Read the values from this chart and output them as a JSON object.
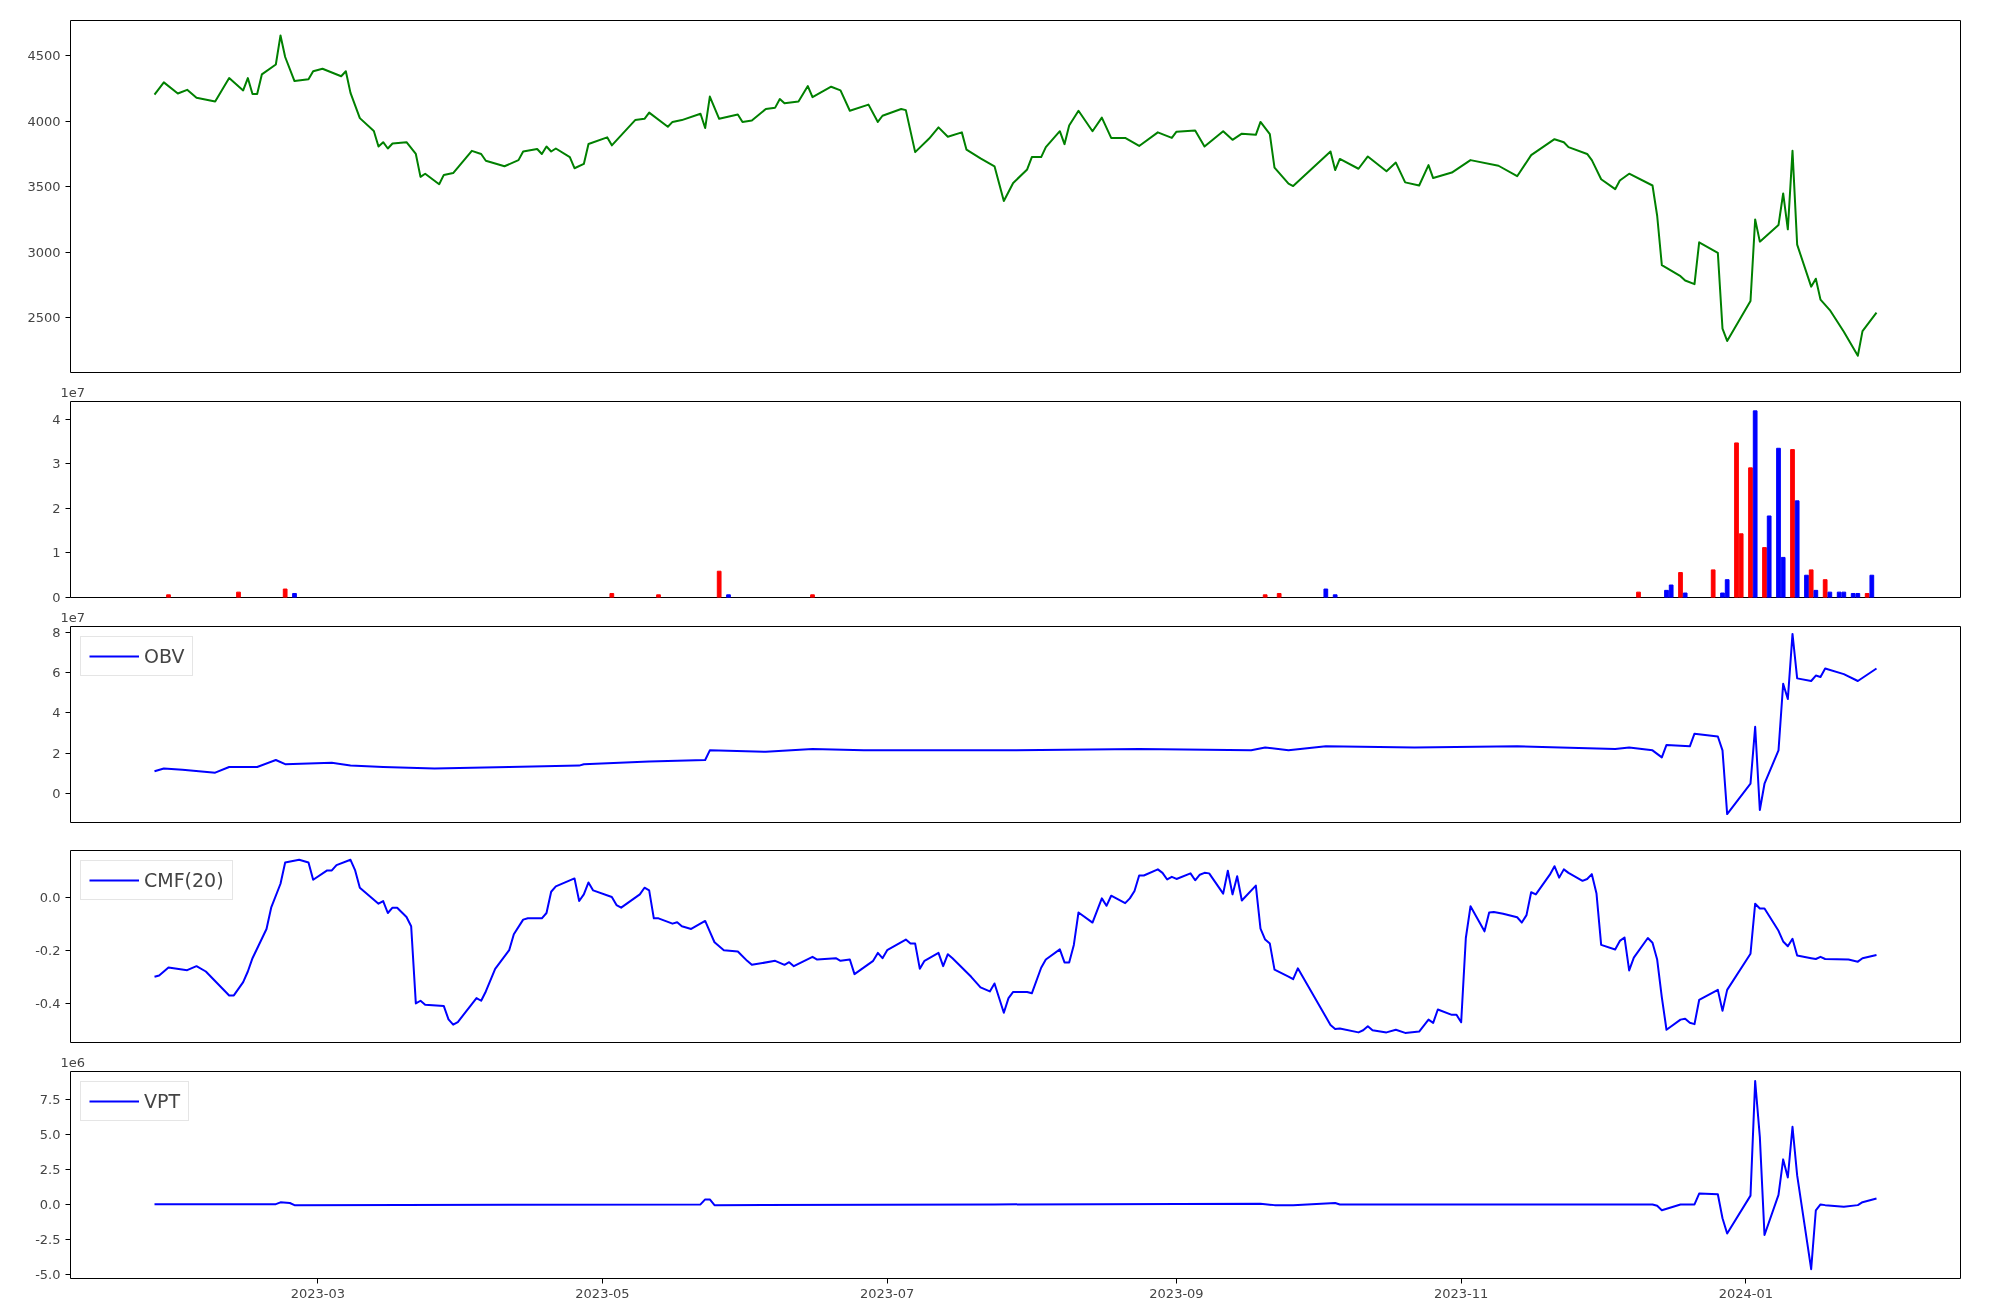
{
  "chart_data": [
    {
      "type": "line",
      "xlim": [
        "2023-01-07",
        "2024-02-16"
      ],
      "ylim": [
        2080,
        4770
      ],
      "yticks": [
        2500,
        3000,
        3500,
        4000,
        4500
      ],
      "grid": false,
      "tick_labels": "y",
      "x": [
        "2023-01-25",
        "2023-01-27",
        "2023-01-30",
        "2023-02-01",
        "2023-02-03",
        "2023-02-07",
        "2023-02-10",
        "2023-02-13",
        "2023-02-14",
        "2023-02-15",
        "2023-02-16",
        "2023-02-17",
        "2023-02-20",
        "2023-02-21",
        "2023-02-22",
        "2023-02-24",
        "2023-02-27",
        "2023-02-28",
        "2023-03-02",
        "2023-03-06",
        "2023-03-07",
        "2023-03-08",
        "2023-03-10",
        "2023-03-13",
        "2023-03-14",
        "2023-03-15",
        "2023-03-16",
        "2023-03-17",
        "2023-03-20",
        "2023-03-22",
        "2023-03-23",
        "2023-03-24",
        "2023-03-27",
        "2023-03-28",
        "2023-03-30",
        "2023-04-03",
        "2023-04-05",
        "2023-04-06",
        "2023-04-10",
        "2023-04-13",
        "2023-04-14",
        "2023-04-17",
        "2023-04-18",
        "2023-04-19",
        "2023-04-20",
        "2023-04-21",
        "2023-04-24",
        "2023-04-25",
        "2023-04-27",
        "2023-04-28",
        "2023-05-02",
        "2023-05-03",
        "2023-05-08",
        "2023-05-10",
        "2023-05-11",
        "2023-05-15",
        "2023-05-16",
        "2023-05-18",
        "2023-05-22",
        "2023-05-23",
        "2023-05-24",
        "2023-05-26",
        "2023-05-30",
        "2023-05-31",
        "2023-06-02",
        "2023-06-05",
        "2023-06-07",
        "2023-06-08",
        "2023-06-09",
        "2023-06-12",
        "2023-06-14",
        "2023-06-15",
        "2023-06-19",
        "2023-06-21",
        "2023-06-23",
        "2023-06-27",
        "2023-06-29",
        "2023-06-30",
        "2023-07-04",
        "2023-07-05",
        "2023-07-07",
        "2023-07-10",
        "2023-07-12",
        "2023-07-14",
        "2023-07-17",
        "2023-07-18",
        "2023-07-21",
        "2023-07-24",
        "2023-07-26",
        "2023-07-28",
        "2023-07-31",
        "2023-08-01",
        "2023-08-03",
        "2023-08-04",
        "2023-08-07",
        "2023-08-08",
        "2023-08-09",
        "2023-08-11",
        "2023-08-14",
        "2023-08-16",
        "2023-08-18",
        "2023-08-21",
        "2023-08-24",
        "2023-08-28",
        "2023-08-31",
        "2023-09-01",
        "2023-09-05",
        "2023-09-07",
        "2023-09-11",
        "2023-09-13",
        "2023-09-15",
        "2023-09-18",
        "2023-09-19",
        "2023-09-21",
        "2023-09-22",
        "2023-09-25",
        "2023-09-26",
        "2023-10-04",
        "2023-10-05",
        "2023-10-06",
        "2023-10-10",
        "2023-10-12",
        "2023-10-16",
        "2023-10-18",
        "2023-10-20",
        "2023-10-23",
        "2023-10-25",
        "2023-10-26",
        "2023-10-30",
        "2023-11-03",
        "2023-11-09",
        "2023-11-13",
        "2023-11-16",
        "2023-11-21",
        "2023-11-23",
        "2023-11-24",
        "2023-11-28",
        "2023-11-29",
        "2023-12-01",
        "2023-12-04",
        "2023-12-05",
        "2023-12-07",
        "2023-12-12",
        "2023-12-13",
        "2023-12-14",
        "2023-12-18",
        "2023-12-19",
        "2023-12-21",
        "2023-12-22",
        "2023-12-26",
        "2023-12-27",
        "2023-12-28",
        "2024-01-02",
        "2024-01-03",
        "2024-01-04",
        "2024-01-08",
        "2024-01-09",
        "2024-01-10",
        "2024-01-11",
        "2024-01-12",
        "2024-01-15",
        "2024-01-16",
        "2024-01-17",
        "2024-01-19",
        "2024-01-22",
        "2024-01-25",
        "2024-01-26",
        "2024-01-29"
      ],
      "series": [
        {
          "color": "#008000",
          "values": [
            4203,
            4297,
            4212,
            4240,
            4179,
            4151,
            4330,
            4236,
            4330,
            4208,
            4208,
            4358,
            4434,
            4656,
            4491,
            4307,
            4321,
            4382,
            4401,
            4344,
            4382,
            4217,
            4024,
            3925,
            3807,
            3840,
            3792,
            3830,
            3840,
            3750,
            3575,
            3599,
            3519,
            3590,
            3604,
            3774,
            3750,
            3698,
            3656,
            3703,
            3769,
            3788,
            3750,
            3807,
            3769,
            3792,
            3726,
            3641,
            3674,
            3826,
            3877,
            3816,
            4009,
            4019,
            4066,
            3958,
            3995,
            4009,
            4057,
            3948,
            4189,
            4019,
            4052,
            3995,
            4005,
            4094,
            4104,
            4170,
            4137,
            4151,
            4269,
            4184,
            4264,
            4236,
            4080,
            4127,
            3995,
            4042,
            4094,
            4085,
            3764,
            3868,
            3953,
            3882,
            3915,
            3783,
            3717,
            3656,
            3391,
            3528,
            3632,
            3726,
            3726,
            3802,
            3924,
            3825,
            3967,
            4080,
            3924,
            4028,
            3873,
            3873,
            3811,
            3915,
            3873,
            3920,
            3929,
            3807,
            3924,
            3858,
            3905,
            3896,
            3995,
            3901,
            3646,
            3524,
            3505,
            3769,
            3627,
            3712,
            3637,
            3731,
            3618,
            3684,
            3533,
            3509,
            3665,
            3566,
            3608,
            3703,
            3660,
            3580,
            3741,
            3863,
            3840,
            3802,
            3750,
            3703,
            3557,
            3481,
            3547,
            3599,
            3509,
            3278,
            2901,
            2816,
            2783,
            2755,
            3075,
            2995,
            2415,
            2321,
            2627,
            3250,
            3080,
            3207,
            3448,
            3174,
            3774,
            3057,
            2736,
            2797,
            2637,
            2557,
            2391,
            2208,
            2396,
            2538
          ]
        }
      ]
    },
    {
      "type": "bar",
      "ylabel": "1e7",
      "xlim": [
        "2023-01-07",
        "2024-02-16"
      ],
      "ylim": [
        0,
        4.4
      ],
      "yticks": [
        0,
        1,
        2,
        3,
        4
      ],
      "grid": false,
      "tick_labels": "y",
      "x": [
        "2023-01-28",
        "2023-02-12",
        "2023-02-22",
        "2023-02-24",
        "2023-05-03",
        "2023-05-13",
        "2023-05-26",
        "2023-05-28",
        "2023-06-15",
        "2023-09-20",
        "2023-09-23",
        "2023-10-03",
        "2023-10-05",
        "2023-12-09",
        "2023-12-15",
        "2023-12-16",
        "2023-12-18",
        "2023-12-19",
        "2023-12-25",
        "2023-12-27",
        "2023-12-28",
        "2023-12-30",
        "2023-12-31",
        "2024-01-02",
        "2024-01-03",
        "2024-01-05",
        "2024-01-06",
        "2024-01-08",
        "2024-01-09",
        "2024-01-11",
        "2024-01-12",
        "2024-01-14",
        "2024-01-15",
        "2024-01-16",
        "2024-01-18",
        "2024-01-19",
        "2024-01-21",
        "2024-01-22",
        "2024-01-24",
        "2024-01-25",
        "2024-01-27",
        "2024-01-28"
      ],
      "values": [
        0.06,
        0.12,
        0.19,
        0.09,
        0.09,
        0.06,
        0.59,
        0.06,
        0.06,
        0.06,
        0.09,
        0.19,
        0.06,
        0.12,
        0.16,
        0.28,
        0.56,
        0.1,
        0.62,
        0.1,
        0.4,
        3.47,
        1.43,
        2.91,
        4.19,
        1.12,
        1.83,
        3.35,
        0.9,
        3.32,
        2.17,
        0.5,
        0.62,
        0.16,
        0.4,
        0.12,
        0.12,
        0.12,
        0.09,
        0.09,
        0.09,
        0.5
      ],
      "colors": [
        "#ff0000",
        "#ff0000",
        "#ff0000",
        "#0000ff",
        "#ff0000",
        "#ff0000",
        "#ff0000",
        "#0000ff",
        "#ff0000",
        "#ff0000",
        "#ff0000",
        "#0000ff",
        "#0000ff",
        "#ff0000",
        "#0000ff",
        "#0000ff",
        "#ff0000",
        "#0000ff",
        "#ff0000",
        "#0000ff",
        "#0000ff",
        "#ff0000",
        "#ff0000",
        "#ff0000",
        "#0000ff",
        "#ff0000",
        "#0000ff",
        "#0000ff",
        "#0000ff",
        "#ff0000",
        "#0000ff",
        "#0000ff",
        "#ff0000",
        "#0000ff",
        "#ff0000",
        "#0000ff",
        "#0000ff",
        "#0000ff",
        "#0000ff",
        "#0000ff",
        "#ff0000",
        "#0000ff"
      ]
    },
    {
      "type": "line",
      "ylabel": "1e7",
      "xlim": [
        "2023-01-07",
        "2024-02-16"
      ],
      "ylim": [
        -1.45,
        8.3
      ],
      "yticks": [
        0,
        2,
        4,
        6,
        8
      ],
      "grid": false,
      "tick_labels": "y",
      "legend": "top left",
      "x": [
        "2023-01-25",
        "2023-01-27",
        "2023-01-31",
        "2023-02-07",
        "2023-02-10",
        "2023-02-16",
        "2023-02-20",
        "2023-02-22",
        "2023-03-04",
        "2023-03-08",
        "2023-03-15",
        "2023-03-26",
        "2023-04-11",
        "2023-04-26",
        "2023-04-27",
        "2023-05-11",
        "2023-05-23",
        "2023-05-24",
        "2023-06-05",
        "2023-06-15",
        "2023-06-26",
        "2023-07-28",
        "2023-08-24",
        "2023-09-17",
        "2023-09-20",
        "2023-09-25",
        "2023-10-03",
        "2023-10-22",
        "2023-11-13",
        "2023-12-04",
        "2023-12-07",
        "2023-12-12",
        "2023-12-14",
        "2023-12-15",
        "2023-12-20",
        "2023-12-21",
        "2023-12-26",
        "2023-12-27",
        "2023-12-28",
        "2024-01-02",
        "2024-01-03",
        "2024-01-04",
        "2024-01-05",
        "2024-01-08",
        "2024-01-09",
        "2024-01-10",
        "2024-01-11",
        "2024-01-12",
        "2024-01-15",
        "2024-01-16",
        "2024-01-17",
        "2024-01-18",
        "2024-01-22",
        "2024-01-25",
        "2024-01-29"
      ],
      "series": [
        {
          "name": "OBV",
          "color": "#0000ff",
          "values": [
            1.1,
            1.24,
            1.17,
            1.03,
            1.31,
            1.31,
            1.66,
            1.45,
            1.52,
            1.38,
            1.31,
            1.24,
            1.31,
            1.38,
            1.45,
            1.59,
            1.66,
            2.14,
            2.07,
            2.21,
            2.14,
            2.14,
            2.21,
            2.14,
            2.28,
            2.14,
            2.34,
            2.28,
            2.34,
            2.21,
            2.28,
            2.14,
            1.79,
            2.41,
            2.34,
            2.97,
            2.83,
            2.14,
            -1.03,
            0.48,
            3.31,
            -0.83,
            0.48,
            2.14,
            5.45,
            4.69,
            7.93,
            5.72,
            5.59,
            5.86,
            5.79,
            6.21,
            5.93,
            5.59,
            6.21
          ]
        }
      ]
    },
    {
      "type": "line",
      "xlim": [
        "2023-01-07",
        "2024-02-16"
      ],
      "ylim": [
        -0.547,
        0.175
      ],
      "yticks": [
        {
          "value": -0.4,
          "label": "-0.4"
        },
        {
          "value": -0.2,
          "label": "-0.2"
        },
        {
          "value": 0,
          "label": "0.0"
        }
      ],
      "grid": false,
      "tick_labels": "y",
      "legend": "top left",
      "x": [
        "2023-01-25",
        "2023-01-26",
        "2023-01-28",
        "2023-02-01",
        "2023-02-03",
        "2023-02-05",
        "2023-02-10",
        "2023-02-11",
        "2023-02-13",
        "2023-02-14",
        "2023-02-15",
        "2023-02-18",
        "2023-02-19",
        "2023-02-21",
        "2023-02-22",
        "2023-02-25",
        "2023-02-27",
        "2023-02-28",
        "2023-03-03",
        "2023-03-04",
        "2023-03-05",
        "2023-03-08",
        "2023-03-09",
        "2023-03-10",
        "2023-03-11",
        "2023-03-14",
        "2023-03-15",
        "2023-03-16",
        "2023-03-17",
        "2023-03-18",
        "2023-03-20",
        "2023-03-21",
        "2023-03-22",
        "2023-03-23",
        "2023-03-24",
        "2023-03-28",
        "2023-03-29",
        "2023-03-30",
        "2023-03-31",
        "2023-04-04",
        "2023-04-05",
        "2023-04-06",
        "2023-04-08",
        "2023-04-11",
        "2023-04-12",
        "2023-04-14",
        "2023-04-15",
        "2023-04-18",
        "2023-04-19",
        "2023-04-20",
        "2023-04-21",
        "2023-04-25",
        "2023-04-26",
        "2023-04-27",
        "2023-04-28",
        "2023-04-29",
        "2023-05-03",
        "2023-05-04",
        "2023-05-05",
        "2023-05-09",
        "2023-05-10",
        "2023-05-11",
        "2023-05-12",
        "2023-05-13",
        "2023-05-16",
        "2023-05-17",
        "2023-05-18",
        "2023-05-20",
        "2023-05-23",
        "2023-05-24",
        "2023-05-25",
        "2023-05-27",
        "2023-05-30",
        "2023-06-01",
        "2023-06-02",
        "2023-06-07",
        "2023-06-09",
        "2023-06-10",
        "2023-06-11",
        "2023-06-15",
        "2023-06-16",
        "2023-06-20",
        "2023-06-21",
        "2023-06-23",
        "2023-06-24",
        "2023-06-28",
        "2023-06-29",
        "2023-06-30",
        "2023-07-01",
        "2023-07-05",
        "2023-07-06",
        "2023-07-07",
        "2023-07-08",
        "2023-07-09",
        "2023-07-12",
        "2023-07-13",
        "2023-07-14",
        "2023-07-15",
        "2023-07-19",
        "2023-07-21",
        "2023-07-23",
        "2023-07-24",
        "2023-07-26",
        "2023-07-27",
        "2023-07-28",
        "2023-07-31",
        "2023-08-01",
        "2023-08-03",
        "2023-08-04",
        "2023-08-07",
        "2023-08-08",
        "2023-08-09",
        "2023-08-10",
        "2023-08-11",
        "2023-08-14",
        "2023-08-16",
        "2023-08-17",
        "2023-08-18",
        "2023-08-21",
        "2023-08-22",
        "2023-08-23",
        "2023-08-24",
        "2023-08-25",
        "2023-08-28",
        "2023-08-29",
        "2023-08-30",
        "2023-08-31",
        "2023-09-01",
        "2023-09-04",
        "2023-09-05",
        "2023-09-06",
        "2023-09-07",
        "2023-09-08",
        "2023-09-11",
        "2023-09-12",
        "2023-09-13",
        "2023-09-14",
        "2023-09-15",
        "2023-09-18",
        "2023-09-19",
        "2023-09-20",
        "2023-09-21",
        "2023-09-22",
        "2023-09-25",
        "2023-09-26",
        "2023-09-27",
        "2023-10-04",
        "2023-10-05",
        "2023-10-06",
        "2023-10-10",
        "2023-10-11",
        "2023-10-12",
        "2023-10-13",
        "2023-10-16",
        "2023-10-18",
        "2023-10-20",
        "2023-10-23",
        "2023-10-25",
        "2023-10-26",
        "2023-10-27",
        "2023-10-30",
        "2023-10-31",
        "2023-11-01",
        "2023-11-02",
        "2023-11-03",
        "2023-11-06",
        "2023-11-07",
        "2023-11-08",
        "2023-11-10",
        "2023-11-13",
        "2023-11-14",
        "2023-11-15",
        "2023-11-16",
        "2023-11-17",
        "2023-11-20",
        "2023-11-21",
        "2023-11-22",
        "2023-11-23",
        "2023-11-24",
        "2023-11-27",
        "2023-11-28",
        "2023-11-29",
        "2023-11-30",
        "2023-12-01",
        "2023-12-04",
        "2023-12-05",
        "2023-12-06",
        "2023-12-07",
        "2023-12-08",
        "2023-12-11",
        "2023-12-12",
        "2023-12-13",
        "2023-12-14",
        "2023-12-15",
        "2023-12-18",
        "2023-12-19",
        "2023-12-20",
        "2023-12-21",
        "2023-12-22",
        "2023-12-26",
        "2023-12-27",
        "2023-12-28",
        "2024-01-02",
        "2024-01-03",
        "2024-01-04",
        "2024-01-05",
        "2024-01-08",
        "2024-01-09",
        "2024-01-10",
        "2024-01-11",
        "2024-01-12",
        "2024-01-15",
        "2024-01-16",
        "2024-01-17",
        "2024-01-18",
        "2024-01-23",
        "2024-01-25",
        "2024-01-26",
        "2024-01-29"
      ],
      "series": [
        {
          "name": "CMF(20)",
          "color": "#0000ff",
          "values": [
            -0.3,
            -0.295,
            -0.265,
            -0.275,
            -0.26,
            -0.28,
            -0.37,
            -0.37,
            -0.32,
            -0.28,
            -0.23,
            -0.12,
            -0.04,
            0.05,
            0.13,
            0.14,
            0.13,
            0.065,
            0.1,
            0.1,
            0.12,
            0.14,
            0.1,
            0.035,
            0.02,
            -0.025,
            -0.015,
            -0.06,
            -0.04,
            -0.04,
            -0.075,
            -0.11,
            -0.4,
            -0.39,
            -0.405,
            -0.41,
            -0.46,
            -0.48,
            -0.47,
            -0.38,
            -0.39,
            -0.355,
            -0.27,
            -0.2,
            -0.14,
            -0.085,
            -0.08,
            -0.08,
            -0.06,
            0.02,
            0.04,
            0.07,
            -0.015,
            0.01,
            0.055,
            0.025,
            0.0,
            -0.03,
            -0.04,
            0.01,
            0.035,
            0.025,
            -0.08,
            -0.08,
            -0.1,
            -0.095,
            -0.11,
            -0.12,
            -0.09,
            -0.13,
            -0.17,
            -0.2,
            -0.205,
            -0.24,
            -0.255,
            -0.24,
            -0.255,
            -0.245,
            -0.26,
            -0.225,
            -0.235,
            -0.23,
            -0.24,
            -0.235,
            -0.29,
            -0.24,
            -0.21,
            -0.23,
            -0.2,
            -0.16,
            -0.175,
            -0.175,
            -0.27,
            -0.24,
            -0.21,
            -0.26,
            -0.215,
            -0.23,
            -0.3,
            -0.34,
            -0.355,
            -0.325,
            -0.435,
            -0.38,
            -0.357,
            -0.357,
            -0.362,
            -0.266,
            -0.235,
            -0.197,
            -0.246,
            -0.246,
            -0.18,
            -0.058,
            -0.096,
            -0.005,
            -0.033,
            0.005,
            -0.023,
            -0.005,
            0.023,
            0.081,
            0.081,
            0.104,
            0.091,
            0.066,
            0.076,
            0.068,
            0.089,
            0.063,
            0.084,
            0.091,
            0.089,
            0.013,
            0.099,
            0.01,
            0.078,
            -0.013,
            0.043,
            -0.119,
            -0.16,
            -0.175,
            -0.273,
            -0.299,
            -0.309,
            -0.268,
            -0.481,
            -0.496,
            -0.494,
            -0.509,
            -0.501,
            -0.486,
            -0.501,
            -0.509,
            -0.499,
            -0.511,
            -0.506,
            -0.461,
            -0.473,
            -0.423,
            -0.443,
            -0.443,
            -0.471,
            -0.154,
            -0.035,
            -0.129,
            -0.058,
            -0.056,
            -0.063,
            -0.076,
            -0.096,
            -0.068,
            0.018,
            0.01,
            0.084,
            0.116,
            0.073,
            0.104,
            0.091,
            0.061,
            0.068,
            0.086,
            0.013,
            -0.18,
            -0.197,
            -0.165,
            -0.152,
            -0.276,
            -0.228,
            -0.154,
            -0.172,
            -0.235,
            -0.377,
            -0.499,
            -0.461,
            -0.458,
            -0.473,
            -0.478,
            -0.387,
            -0.349,
            -0.428,
            -0.349,
            -0.213,
            -0.025,
            -0.043,
            -0.043,
            -0.127,
            -0.167,
            -0.185,
            -0.157,
            -0.22,
            -0.23,
            -0.233,
            -0.225,
            -0.233,
            -0.235,
            -0.243,
            -0.23,
            -0.218
          ]
        }
      ]
    },
    {
      "type": "line",
      "ylabel": "1e6",
      "xlim": [
        "2023-01-07",
        "2024-02-16"
      ],
      "xticks": [
        {
          "value": "2023-03-01",
          "label": "2023-03"
        },
        {
          "value": "2023-05-01",
          "label": "2023-05"
        },
        {
          "value": "2023-07-01",
          "label": "2023-07"
        },
        {
          "value": "2023-09-01",
          "label": "2023-09"
        },
        {
          "value": "2023-11-01",
          "label": "2023-11"
        },
        {
          "value": "2024-01-01",
          "label": "2024-01"
        }
      ],
      "ylim": [
        -5.31,
        9.53
      ],
      "yticks": [
        {
          "value": -5,
          "label": "-5.0"
        },
        {
          "value": -2.5,
          "label": "-2.5"
        },
        {
          "value": 0,
          "label": "0.0"
        },
        {
          "value": 2.5,
          "label": "2.5"
        },
        {
          "value": 5,
          "label": "5.0"
        },
        {
          "value": 7.5,
          "label": "7.5"
        }
      ],
      "grid": false,
      "legend": "top left",
      "x": [
        "2023-01-25",
        "2023-02-20",
        "2023-02-21",
        "2023-02-23",
        "2023-02-24",
        "2023-05-22",
        "2023-05-23",
        "2023-05-24",
        "2023-05-25",
        "2023-07-24",
        "2023-09-19",
        "2023-09-22",
        "2023-09-26",
        "2023-10-05",
        "2023-10-06",
        "2023-12-12",
        "2023-12-13",
        "2023-12-14",
        "2023-12-18",
        "2023-12-21",
        "2023-12-22",
        "2023-12-26",
        "2023-12-27",
        "2023-12-28",
        "2024-01-02",
        "2024-01-03",
        "2024-01-04",
        "2024-01-05",
        "2024-01-08",
        "2024-01-09",
        "2024-01-10",
        "2024-01-11",
        "2024-01-12",
        "2024-01-15",
        "2024-01-16",
        "2024-01-17",
        "2024-01-18",
        "2024-01-22",
        "2024-01-25",
        "2024-01-26",
        "2024-01-29"
      ],
      "series": [
        {
          "name": "VPT",
          "color": "#0000ff",
          "values": [
            0.02,
            0.02,
            0.15,
            0.1,
            -0.05,
            0.0,
            0.36,
            0.36,
            -0.05,
            0.0,
            0.05,
            -0.05,
            -0.05,
            0.1,
            0.0,
            0.0,
            -0.1,
            -0.42,
            0.0,
            0.0,
            0.78,
            0.73,
            -0.99,
            -2.08,
            0.63,
            8.85,
            4.84,
            -2.19,
            0.68,
            3.23,
            1.93,
            5.57,
            2.08,
            -4.64,
            -0.42,
            0.0,
            -0.05,
            -0.16,
            -0.05,
            0.16,
            0.42
          ]
        }
      ]
    }
  ]
}
